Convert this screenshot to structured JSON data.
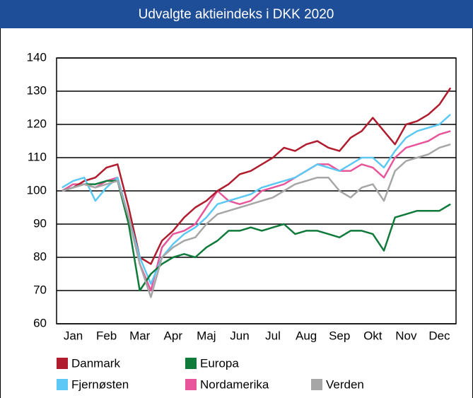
{
  "chart_data": {
    "type": "line",
    "title": "Udvalgte aktieindeks i DKK 2020",
    "categories": [
      null,
      "Jan",
      null,
      null,
      "Feb",
      null,
      null,
      "Mar",
      null,
      null,
      "Apr",
      null,
      null,
      "Maj",
      null,
      null,
      "Jun",
      null,
      null,
      "Jul",
      null,
      null,
      "Aug",
      null,
      null,
      "Sep",
      null,
      null,
      "Okt",
      null,
      null,
      "Nov",
      null,
      null,
      "Dec",
      null
    ],
    "series": [
      {
        "name": "Danmark",
        "color": "#b01c2e",
        "values": [
          100,
          101,
          103,
          104,
          107,
          108,
          95,
          80,
          78,
          85,
          88,
          92,
          95,
          97,
          100,
          102,
          105,
          106,
          108,
          110,
          113,
          112,
          114,
          115,
          113,
          112,
          116,
          118,
          122,
          118,
          114,
          120,
          121,
          123,
          126,
          131
        ]
      },
      {
        "name": "Europa",
        "color": "#0f7a3a",
        "values": [
          100,
          101,
          102,
          102,
          103,
          103,
          90,
          70,
          75,
          78,
          80,
          81,
          80,
          83,
          85,
          88,
          88,
          89,
          88,
          89,
          90,
          87,
          88,
          88,
          87,
          86,
          88,
          88,
          87,
          82,
          92,
          93,
          94,
          94,
          94,
          96
        ]
      },
      {
        "name": "Fjernøsten",
        "color": "#5bc8f5",
        "values": [
          101,
          103,
          104,
          97,
          101,
          104,
          92,
          80,
          72,
          80,
          84,
          87,
          89,
          92,
          96,
          97,
          98,
          99,
          101,
          102,
          103,
          104,
          106,
          108,
          107,
          106,
          108,
          110,
          110,
          107,
          112,
          116,
          118,
          119,
          120,
          123
        ]
      },
      {
        "name": "Nordamerika",
        "color": "#e8559a",
        "values": [
          100,
          102,
          102,
          101,
          103,
          104,
          92,
          78,
          70,
          83,
          87,
          88,
          90,
          95,
          100,
          97,
          96,
          97,
          100,
          101,
          102,
          104,
          106,
          108,
          108,
          106,
          106,
          108,
          107,
          104,
          110,
          113,
          114,
          115,
          117,
          118
        ]
      },
      {
        "name": "Verden",
        "color": "#a6a6a6",
        "values": [
          100,
          101,
          102,
          101,
          102,
          103,
          92,
          78,
          68,
          80,
          83,
          85,
          86,
          90,
          93,
          94,
          95,
          96,
          97,
          98,
          100,
          102,
          103,
          104,
          104,
          100,
          98,
          101,
          102,
          97,
          106,
          109,
          110,
          111,
          113,
          114
        ]
      }
    ],
    "ylim": [
      60,
      140
    ],
    "yticks": [
      60,
      70,
      80,
      90,
      100,
      110,
      120,
      130,
      140
    ],
    "grid": true
  }
}
